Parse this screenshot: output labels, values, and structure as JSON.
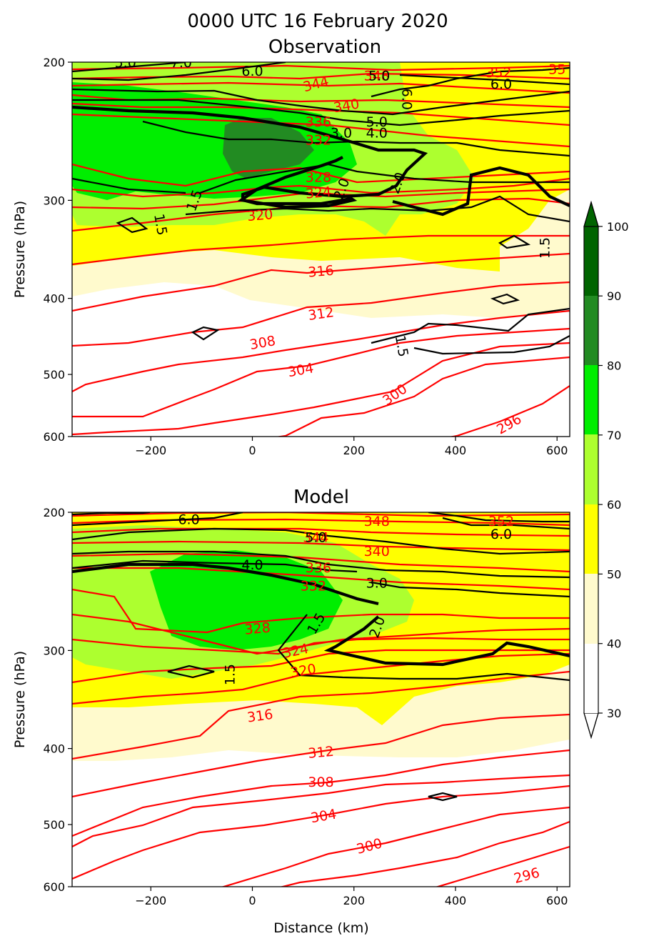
{
  "title_line1": "0000 UTC 16 February 2020",
  "colors": {
    "theta": "#ff0000",
    "pv": "#000000",
    "fill": [
      "#fffacd",
      "#ffff00",
      "#adff2f",
      "#00ee00",
      "#228b22",
      "#006400"
    ]
  },
  "chart_data": [
    {
      "type": "contour",
      "title": "Observation",
      "xlabel": "",
      "ylabel": "Pressure (hPa)",
      "xlim": [
        -355,
        625
      ],
      "ylim": [
        200,
        600
      ],
      "y_scale": "log",
      "xticks": [
        "−200",
        "0",
        "200",
        "400",
        "600"
      ],
      "yticks": [
        "200",
        "300",
        "400",
        "500",
        "600"
      ],
      "theta_labels": [
        {
          "text": "344",
          "x": 125,
          "p": 213,
          "rot": -15
        },
        {
          "text": "348",
          "x": 245,
          "p": 208,
          "rot": 0
        },
        {
          "text": "352",
          "x": 485,
          "p": 206,
          "rot": 0
        },
        {
          "text": "35",
          "x": 600,
          "p": 204,
          "rot": 0
        },
        {
          "text": "340",
          "x": 185,
          "p": 227,
          "rot": -10
        },
        {
          "text": "336",
          "x": 130,
          "p": 238,
          "rot": 0
        },
        {
          "text": "332",
          "x": 130,
          "p": 251,
          "rot": 0
        },
        {
          "text": "328",
          "x": 130,
          "p": 280,
          "rot": 0
        },
        {
          "text": "324",
          "x": 130,
          "p": 293,
          "rot": -5
        },
        {
          "text": "320",
          "x": 15,
          "p": 313,
          "rot": -5
        },
        {
          "text": "316",
          "x": 135,
          "p": 369,
          "rot": -5
        },
        {
          "text": "312",
          "x": 135,
          "p": 418,
          "rot": -8
        },
        {
          "text": "308",
          "x": 20,
          "p": 455,
          "rot": -10
        },
        {
          "text": "304",
          "x": 95,
          "p": 493,
          "rot": -10
        },
        {
          "text": "300",
          "x": 280,
          "p": 530,
          "rot": -35
        },
        {
          "text": "296",
          "x": 505,
          "p": 578,
          "rot": -30
        }
      ],
      "pv_labels": [
        {
          "text": "5.0",
          "x": -250,
          "p": 200,
          "rot": 0
        },
        {
          "text": "7.0",
          "x": -140,
          "p": 200,
          "rot": 0
        },
        {
          "text": "6.0",
          "x": 0,
          "p": 205,
          "rot": 0
        },
        {
          "text": "5.0",
          "x": 250,
          "p": 208,
          "rot": 0
        },
        {
          "text": "6.0",
          "x": 305,
          "p": 223,
          "rot": 90
        },
        {
          "text": "6.0",
          "x": 490,
          "p": 213,
          "rot": 0
        },
        {
          "text": "5.0",
          "x": 245,
          "p": 238,
          "rot": 0
        },
        {
          "text": "3.0",
          "x": 175,
          "p": 246,
          "rot": 0
        },
        {
          "text": "4.0",
          "x": 245,
          "p": 246,
          "rot": 0
        },
        {
          "text": "2.0",
          "x": 175,
          "p": 290,
          "rot": -70
        },
        {
          "text": "2.0",
          "x": 285,
          "p": 285,
          "rot": -70
        },
        {
          "text": "1.5",
          "x": -115,
          "p": 300,
          "rot": -70
        },
        {
          "text": "1.5",
          "x": -180,
          "p": 322,
          "rot": 80
        },
        {
          "text": "1.5",
          "x": 575,
          "p": 345,
          "rot": -90
        },
        {
          "text": "1.5",
          "x": 295,
          "p": 460,
          "rot": 80
        }
      ]
    },
    {
      "type": "contour",
      "title": "Model",
      "xlabel": "Distance (km)",
      "ylabel": "Pressure (hPa)",
      "xlim": [
        -355,
        625
      ],
      "ylim": [
        200,
        600
      ],
      "y_scale": "log",
      "xticks": [
        "−200",
        "0",
        "200",
        "400",
        "600"
      ],
      "yticks": [
        "200",
        "300",
        "400",
        "500",
        "600"
      ],
      "theta_labels": [
        {
          "text": "348",
          "x": 245,
          "p": 205,
          "rot": 0
        },
        {
          "text": "352",
          "x": 490,
          "p": 205,
          "rot": 0
        },
        {
          "text": "344",
          "x": 125,
          "p": 215,
          "rot": 0
        },
        {
          "text": "340",
          "x": 245,
          "p": 224,
          "rot": 0
        },
        {
          "text": "336",
          "x": 130,
          "p": 235,
          "rot": 0
        },
        {
          "text": "332",
          "x": 120,
          "p": 248,
          "rot": 0
        },
        {
          "text": "328",
          "x": 10,
          "p": 281,
          "rot": -5
        },
        {
          "text": "324",
          "x": 85,
          "p": 300,
          "rot": -12
        },
        {
          "text": "320",
          "x": 100,
          "p": 318,
          "rot": -10
        },
        {
          "text": "316",
          "x": 15,
          "p": 363,
          "rot": -8
        },
        {
          "text": "312",
          "x": 135,
          "p": 404,
          "rot": -5
        },
        {
          "text": "308",
          "x": 135,
          "p": 441,
          "rot": 0
        },
        {
          "text": "304",
          "x": 140,
          "p": 487,
          "rot": -10
        },
        {
          "text": "300",
          "x": 230,
          "p": 532,
          "rot": -15
        },
        {
          "text": "296",
          "x": 540,
          "p": 580,
          "rot": -15
        }
      ],
      "pv_labels": [
        {
          "text": "6.0",
          "x": -125,
          "p": 204,
          "rot": 0
        },
        {
          "text": "5.0",
          "x": 125,
          "p": 215,
          "rot": 0
        },
        {
          "text": "6.0",
          "x": 490,
          "p": 213,
          "rot": 0
        },
        {
          "text": "4.0",
          "x": 0,
          "p": 233,
          "rot": 0
        },
        {
          "text": "3.0",
          "x": 245,
          "p": 246,
          "rot": 0
        },
        {
          "text": "1.5",
          "x": 125,
          "p": 277,
          "rot": -60
        },
        {
          "text": "2.0",
          "x": 245,
          "p": 280,
          "rot": -70
        },
        {
          "text": "1.5",
          "x": -45,
          "p": 322,
          "rot": -90
        }
      ]
    }
  ],
  "colorbar": {
    "levels": [
      "30",
      "40",
      "50",
      "60",
      "70",
      "80",
      "90",
      "100"
    ],
    "extend": "both"
  }
}
